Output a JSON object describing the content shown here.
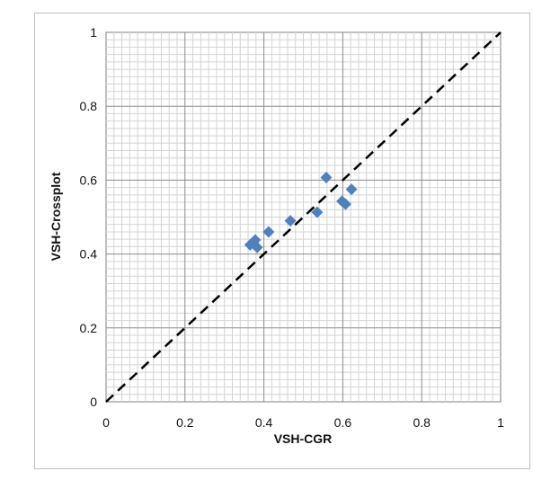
{
  "chart_data": {
    "type": "scatter",
    "title": "",
    "xlabel": "VSH-CGR",
    "ylabel": "VSH-Crossplot",
    "xlim": [
      0,
      1
    ],
    "ylim": [
      0,
      1
    ],
    "x_ticks": [
      "0",
      "0.2",
      "0.4",
      "0.6",
      "0.8",
      "1"
    ],
    "y_ticks": [
      "0",
      "0.2",
      "0.4",
      "0.6",
      "0.8",
      "1"
    ],
    "grid": true,
    "legend": "none",
    "marker": "diamond",
    "marker_color": "#4f81bd",
    "series": [
      {
        "x": [
          0.365,
          0.372,
          0.378,
          0.383,
          0.412,
          0.467,
          0.535,
          0.558,
          0.598,
          0.607,
          0.622
        ],
        "y": [
          0.425,
          0.43,
          0.438,
          0.418,
          0.46,
          0.49,
          0.513,
          0.607,
          0.543,
          0.535,
          0.575
        ]
      }
    ],
    "reference_line": {
      "from": [
        0,
        0
      ],
      "to": [
        1,
        1
      ],
      "style": "dashed",
      "color": "#000000"
    }
  }
}
